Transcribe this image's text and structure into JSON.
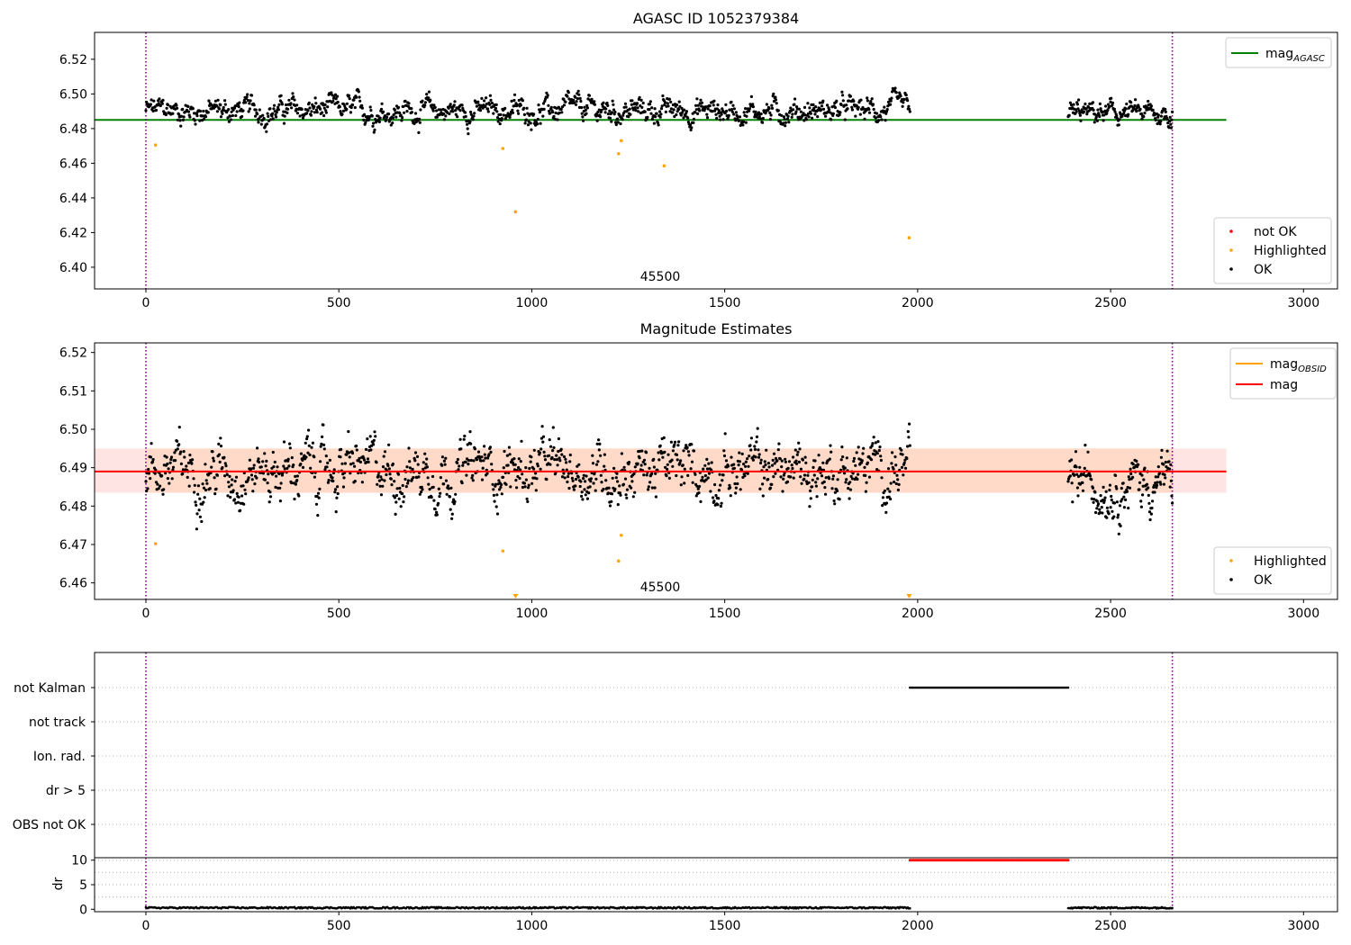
{
  "chart_data": [
    {
      "type": "scatter",
      "title": "AGASC ID 1052379384",
      "annotation": "45500",
      "xlim": [
        -133,
        3088
      ],
      "ylim": [
        6.3875,
        6.5355
      ],
      "x_ticks": [
        0,
        500,
        1000,
        1500,
        2000,
        2500,
        3000
      ],
      "y_ticks": [
        6.4,
        6.42,
        6.44,
        6.46,
        6.48,
        6.5,
        6.52
      ],
      "y_tick_labels": [
        "6.40",
        "6.42",
        "6.44",
        "6.46",
        "6.48",
        "6.50",
        "6.52"
      ],
      "vlines": [
        0,
        2660
      ],
      "hline": {
        "name": "mag_AGASC",
        "label_main": "mag",
        "label_sub": "AGASC",
        "y": 6.485,
        "x": [
          -133,
          2800
        ],
        "color": "#008000"
      },
      "legend_lines": [
        {
          "main": "mag",
          "sub": "AGASC",
          "color": "#008000"
        }
      ],
      "legend_points": [
        {
          "label": "not OK",
          "color": "#ff0000"
        },
        {
          "label": "Highlighted",
          "color": "#ffa500"
        },
        {
          "label": "OK",
          "color": "#000000"
        }
      ],
      "ok_series": {
        "color": "#000000",
        "segments": [
          {
            "x0": 0,
            "x1": 1980,
            "n": 1250,
            "y_mean": 6.4905,
            "y_amp": 0.0085
          },
          {
            "x0": 2390,
            "x1": 2660,
            "n": 190,
            "y_mean": 6.4885,
            "y_amp": 0.0075
          }
        ]
      },
      "highlighted": {
        "color": "#ffa500",
        "points": [
          [
            25,
            6.4705
          ],
          [
            925,
            6.4685
          ],
          [
            958,
            6.432
          ],
          [
            1225,
            6.4655
          ],
          [
            1232,
            6.473
          ],
          [
            1343,
            6.4585
          ],
          [
            1978,
            6.417
          ]
        ]
      }
    },
    {
      "type": "scatter",
      "title": "Magnitude Estimates",
      "annotation": "45500",
      "xlim": [
        -133,
        3088
      ],
      "ylim": [
        6.4557,
        6.5225
      ],
      "x_ticks": [
        0,
        500,
        1000,
        1500,
        2000,
        2500,
        3000
      ],
      "y_ticks": [
        6.46,
        6.47,
        6.48,
        6.49,
        6.5,
        6.51,
        6.52
      ],
      "y_tick_labels": [
        "6.46",
        "6.47",
        "6.48",
        "6.49",
        "6.50",
        "6.51",
        "6.52"
      ],
      "vlines": [
        0,
        2660
      ],
      "band": {
        "y0": 6.4835,
        "y1": 6.495,
        "x": [
          -133,
          2800
        ],
        "colors": [
          "#ffb3b3",
          "#ffd2b3"
        ]
      },
      "hline": {
        "name": "mag",
        "y": 6.489,
        "x": [
          -133,
          2800
        ],
        "color": "#ff0000"
      },
      "legend_lines": [
        {
          "main": "mag",
          "sub": "OBSID",
          "color": "#ffa500"
        },
        {
          "main": "mag",
          "sub": "",
          "color": "#ff0000"
        }
      ],
      "legend_points": [
        {
          "label": "Highlighted",
          "color": "#ffa500"
        },
        {
          "label": "OK",
          "color": "#000000"
        }
      ],
      "ok_series": {
        "color": "#000000",
        "segments": [
          {
            "x0": 0,
            "x1": 1980,
            "n": 1250,
            "y_mean": 6.4895,
            "y_amp": 0.009
          },
          {
            "x0": 2390,
            "x1": 2660,
            "n": 190,
            "y_mean": 6.4865,
            "y_amp": 0.0085
          }
        ]
      },
      "highlighted": {
        "color": "#ffa500",
        "points": [
          [
            25,
            6.4702
          ],
          [
            925,
            6.4683
          ],
          [
            1225,
            6.4657
          ],
          [
            1232,
            6.4724
          ]
        ],
        "off_axis_markers": [
          958,
          1978
        ]
      }
    },
    {
      "type": "scatter",
      "title": "",
      "xlim": [
        -133,
        3088
      ],
      "y_category_labels": [
        "not Kalman",
        "not track",
        "Ion. rad.",
        "dr > 5",
        "OBS not OK"
      ],
      "vlines": [
        0,
        2660
      ],
      "flag_segments": [
        {
          "flag": "not Kalman",
          "x0": 1980,
          "x1": 2390,
          "color": "#000000"
        }
      ]
    },
    {
      "type": "scatter",
      "title": "",
      "ylabel": "dr",
      "xlim": [
        -133,
        3088
      ],
      "ylim": [
        -0.5,
        10.5
      ],
      "x_ticks": [
        0,
        500,
        1000,
        1500,
        2000,
        2500,
        3000
      ],
      "y_ticks": [
        0,
        5,
        10
      ],
      "y_tick_labels": [
        "0",
        "5",
        "10"
      ],
      "vlines": [
        0,
        2660
      ],
      "dr_ok": {
        "color": "#000000",
        "segments": [
          {
            "x0": 0,
            "x1": 1980,
            "n": 700,
            "y_mean": 0.3,
            "y_amp": 0.3
          },
          {
            "x0": 2390,
            "x1": 2660,
            "n": 100,
            "y_mean": 0.3,
            "y_amp": 0.3
          }
        ]
      },
      "dr_flagged": {
        "color": "#ff0000",
        "x0": 1980,
        "x1": 2390,
        "n": 120,
        "y": 10
      }
    }
  ]
}
